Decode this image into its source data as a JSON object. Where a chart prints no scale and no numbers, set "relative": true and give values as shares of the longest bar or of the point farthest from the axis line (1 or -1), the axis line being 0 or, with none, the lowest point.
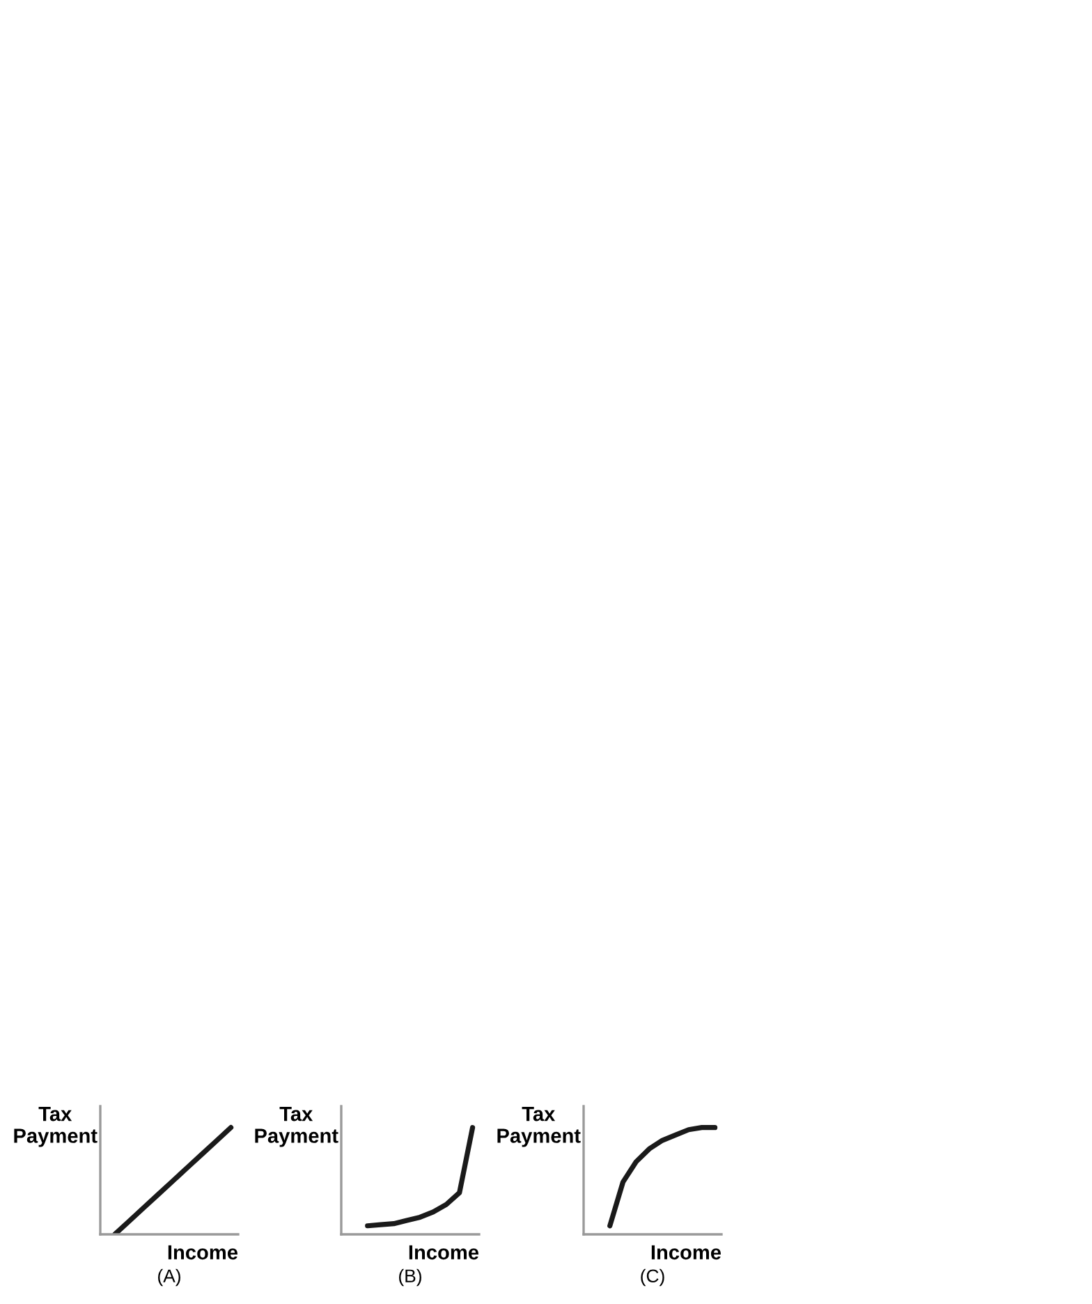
{
  "chart_data": [
    {
      "type": "line",
      "title": "(A)",
      "xlabel": "Income",
      "ylabel": "Tax\nPayment",
      "relative": true,
      "grid": false,
      "legend": false,
      "marker": "none",
      "line_style": "solid",
      "categories": [
        null,
        null,
        null,
        null,
        null,
        null,
        null,
        null,
        null
      ],
      "series": [
        {
          "color": "#1a1a1a",
          "values": [
            0,
            0.125,
            0.25,
            0.375,
            0.5,
            0.625,
            0.75,
            0.875,
            1
          ]
        }
      ]
    },
    {
      "type": "line",
      "title": "(B)",
      "xlabel": "Income",
      "ylabel": "Tax\nPayment",
      "relative": true,
      "grid": false,
      "legend": false,
      "marker": "none",
      "line_style": "solid",
      "categories": [
        null,
        null,
        null,
        null,
        null,
        null,
        null,
        null,
        null,
        null
      ],
      "series": [
        {
          "color": "#1a1a1a",
          "values": [
            null,
            0.08,
            0.09,
            0.1,
            0.13,
            0.16,
            0.21,
            0.28,
            0.39,
            1
          ]
        }
      ]
    },
    {
      "type": "line",
      "title": "(C)",
      "xlabel": "Income",
      "ylabel": "Tax\nPayment",
      "relative": true,
      "grid": false,
      "legend": false,
      "marker": "none",
      "line_style": "solid",
      "categories": [
        null,
        null,
        null,
        null,
        null,
        null,
        null,
        null,
        null,
        null
      ],
      "series": [
        {
          "color": "#1a1a1a",
          "values": [
            null,
            0.08,
            0.49,
            0.68,
            0.8,
            0.88,
            0.93,
            0.98,
            1.0,
            1.0
          ]
        }
      ]
    }
  ]
}
